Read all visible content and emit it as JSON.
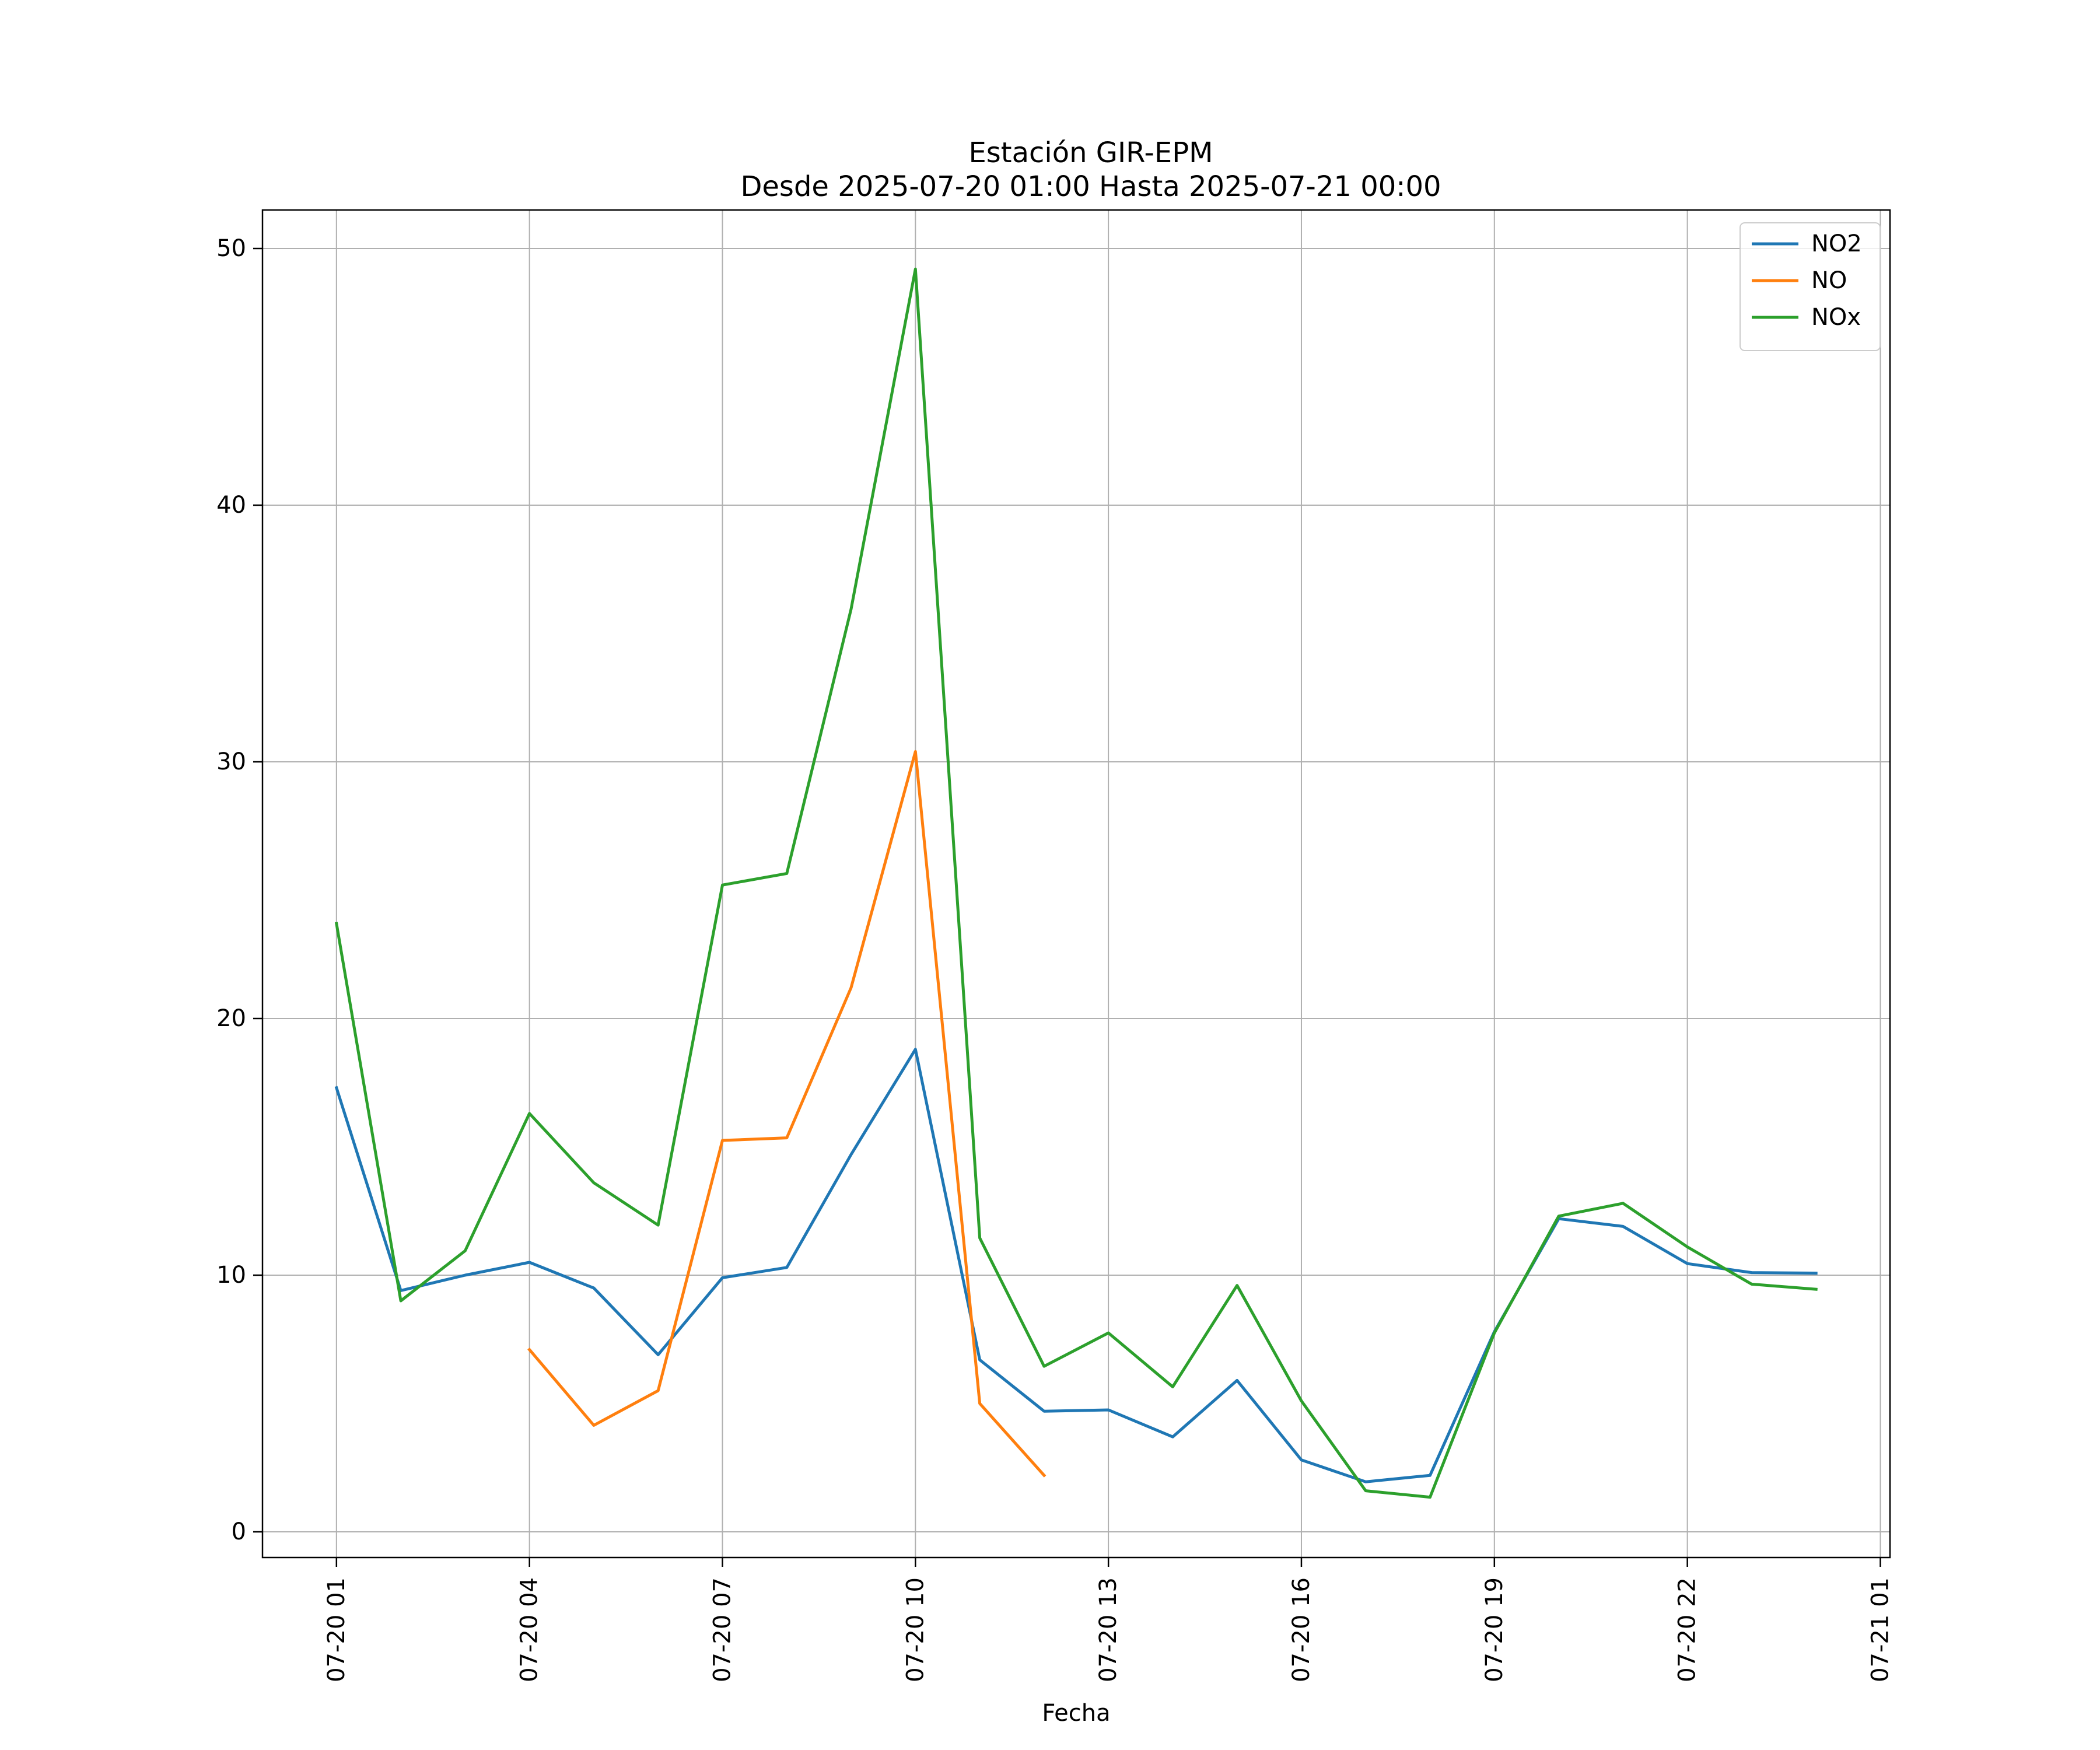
{
  "chart_data": {
    "type": "line",
    "title": "Estación GIR-EPM",
    "subtitle": "Desde 2025-07-20 01:00 Hasta 2025-07-21 00:00",
    "xlabel": "Fecha",
    "ylabel": "",
    "x_unit": "hour",
    "x": [
      "2025-07-20 01:00",
      "2025-07-20 02:00",
      "2025-07-20 03:00",
      "2025-07-20 04:00",
      "2025-07-20 05:00",
      "2025-07-20 06:00",
      "2025-07-20 07:00",
      "2025-07-20 08:00",
      "2025-07-20 09:00",
      "2025-07-20 10:00",
      "2025-07-20 11:00",
      "2025-07-20 12:00",
      "2025-07-20 13:00",
      "2025-07-20 14:00",
      "2025-07-20 15:00",
      "2025-07-20 16:00",
      "2025-07-20 17:00",
      "2025-07-20 18:00",
      "2025-07-20 19:00",
      "2025-07-20 20:00",
      "2025-07-20 21:00",
      "2025-07-20 22:00",
      "2025-07-20 23:00",
      "2025-07-21 00:00"
    ],
    "xlim": [
      "2025-07-19 23:51",
      "2025-07-21 01:09"
    ],
    "ylim": [
      -1,
      51.5
    ],
    "x_ticks": [
      {
        "value": "2025-07-20 01:00",
        "label": "07-20 01"
      },
      {
        "value": "2025-07-20 04:00",
        "label": "07-20 04"
      },
      {
        "value": "2025-07-20 07:00",
        "label": "07-20 07"
      },
      {
        "value": "2025-07-20 10:00",
        "label": "07-20 10"
      },
      {
        "value": "2025-07-20 13:00",
        "label": "07-20 13"
      },
      {
        "value": "2025-07-20 16:00",
        "label": "07-20 16"
      },
      {
        "value": "2025-07-20 19:00",
        "label": "07-20 19"
      },
      {
        "value": "2025-07-20 22:00",
        "label": "07-20 22"
      },
      {
        "value": "2025-07-21 01:00",
        "label": "07-21 01"
      }
    ],
    "y_ticks": [
      {
        "value": 0,
        "label": "0"
      },
      {
        "value": 10,
        "label": "10"
      },
      {
        "value": 20,
        "label": "20"
      },
      {
        "value": 30,
        "label": "30"
      },
      {
        "value": 40,
        "label": "40"
      },
      {
        "value": 50,
        "label": "50"
      }
    ],
    "grid": true,
    "legend_position": "top-right",
    "series": [
      {
        "name": "NO2",
        "color": "#1f77b4",
        "values": [
          17.3,
          9.4,
          10.0,
          10.5,
          9.5,
          6.9,
          9.9,
          10.3,
          14.7,
          18.8,
          6.7,
          4.7,
          4.75,
          3.7,
          5.9,
          2.8,
          1.95,
          2.2,
          7.8,
          12.2,
          11.9,
          10.45,
          10.1,
          10.08
        ]
      },
      {
        "name": "NO",
        "color": "#ff7f0e",
        "values": [
          null,
          null,
          null,
          7.1,
          4.15,
          5.5,
          15.25,
          15.35,
          21.2,
          30.4,
          5.0,
          2.2,
          null,
          null,
          null,
          null,
          null,
          null,
          null,
          null,
          null,
          null,
          null,
          null
        ]
      },
      {
        "name": "NOx",
        "color": "#2ca02c",
        "values": [
          23.7,
          9.0,
          10.95,
          16.3,
          13.6,
          11.95,
          25.2,
          25.65,
          35.95,
          49.2,
          11.45,
          6.45,
          7.75,
          5.65,
          9.6,
          5.1,
          1.6,
          1.35,
          7.75,
          12.3,
          12.8,
          11.1,
          9.65,
          9.45
        ]
      }
    ]
  }
}
